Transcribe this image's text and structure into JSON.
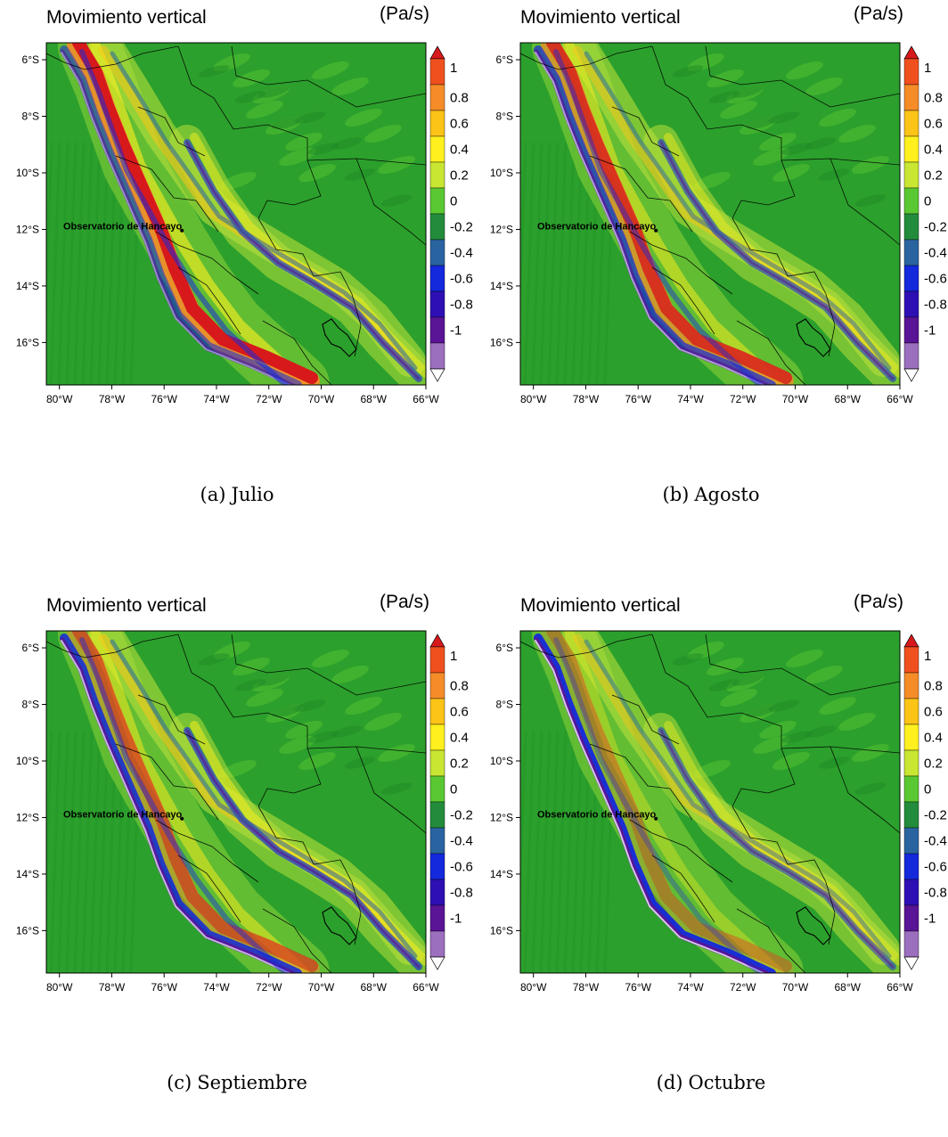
{
  "panels": [
    {
      "title": "Movimiento vertical",
      "units": "(Pa/s)",
      "caption_tag": "(a)",
      "caption_label": "Julio",
      "location_label": "Observatorio de Hancayo",
      "intensity": {
        "coast_positive": 1.0,
        "coast_negative": 0.55,
        "andes_inner": 0.6,
        "andes_outer": 0.55,
        "east_chain": 0.6
      }
    },
    {
      "title": "Movimiento vertical",
      "units": "(Pa/s)",
      "caption_tag": "(b)",
      "caption_label": "Agosto",
      "location_label": "Observatorio de Hancayo",
      "intensity": {
        "coast_positive": 0.8,
        "coast_negative": 0.7,
        "andes_inner": 0.5,
        "andes_outer": 0.5,
        "east_chain": 0.55
      }
    },
    {
      "title": "Movimiento vertical",
      "units": "(Pa/s)",
      "caption_tag": "(c)",
      "caption_label": "Septiembre",
      "location_label": "Observatorio de Hancayo",
      "intensity": {
        "coast_positive": 0.55,
        "coast_negative": 0.85,
        "andes_inner": 0.5,
        "andes_outer": 0.55,
        "east_chain": 0.65
      }
    },
    {
      "title": "Movimiento vertical",
      "units": "(Pa/s)",
      "caption_tag": "(d)",
      "caption_label": "Octubre",
      "location_label": "Observatorio de Hancayo",
      "intensity": {
        "coast_positive": 0.3,
        "coast_negative": 0.95,
        "andes_inner": 0.35,
        "andes_outer": 0.45,
        "east_chain": 0.5
      }
    }
  ],
  "map": {
    "lon_ticks": [
      "80°W",
      "78°W",
      "76°W",
      "74°W",
      "72°W",
      "70°W",
      "68°W",
      "66°W"
    ],
    "lat_ticks": [
      "6°S",
      "8°S",
      "10°S",
      "12°S",
      "14°S",
      "16°S"
    ],
    "lon_range": [
      -80.5,
      -66
    ],
    "lat_range": [
      -17.5,
      -5.4
    ],
    "background_color": "#2ca02c"
  },
  "colorbar": {
    "labels": [
      "1",
      "0.8",
      "0.6",
      "0.4",
      "0.2",
      "0",
      "-0.2",
      "-0.4",
      "-0.6",
      "-0.8",
      "-1"
    ],
    "colors": [
      "#d7191c",
      "#f0501e",
      "#f58c28",
      "#fcc417",
      "#fff01e",
      "#c8e632",
      "#5ac832",
      "#238c3c",
      "#2a64a0",
      "#1428dc",
      "#2d0fb4",
      "#5a1496",
      "#9b6ebe",
      "#e1cdf0"
    ]
  }
}
